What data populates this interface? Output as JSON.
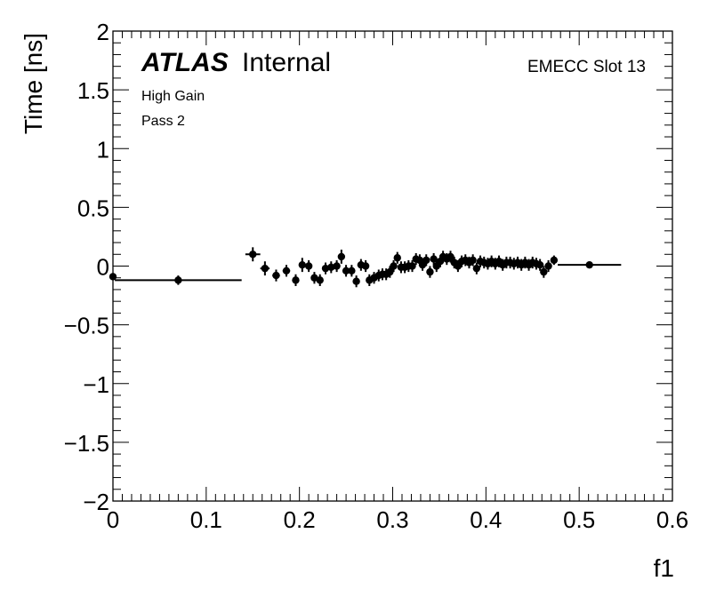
{
  "chart_data": {
    "type": "scatter",
    "title": "",
    "xlabel": "f1",
    "ylabel": "Time [ns]",
    "xlim": [
      0,
      0.6
    ],
    "ylim": [
      -2,
      2
    ],
    "x_ticks": [
      "0",
      "0.1",
      "0.2",
      "0.3",
      "0.4",
      "0.5",
      "0.6"
    ],
    "y_ticks": [
      "−2",
      "−1.5",
      "−1",
      "−0.5",
      "0",
      "0.5",
      "1",
      "1.5",
      "2"
    ],
    "x_tick_values": [
      0,
      0.1,
      0.2,
      0.3,
      0.4,
      0.5,
      0.6
    ],
    "y_tick_values": [
      -2,
      -1.5,
      -1,
      -0.5,
      0,
      0.5,
      1,
      1.5,
      2
    ],
    "annotations": {
      "atlas": "ATLAS",
      "internal": "Internal",
      "gain": "High Gain",
      "pass": "Pass 2",
      "slot": "EMECC Slot 13"
    },
    "grid": false,
    "series": [
      {
        "marker": "circle",
        "color": "#000000",
        "points": [
          {
            "x": 0.0,
            "y": -0.09,
            "xerr": 0.001,
            "yerr": 0.03
          },
          {
            "x": 0.07,
            "y": -0.12,
            "xerr": 0.068,
            "yerr": 0.04
          },
          {
            "x": 0.15,
            "y": 0.1,
            "xerr": 0.008,
            "yerr": 0.06
          },
          {
            "x": 0.163,
            "y": -0.02,
            "xerr": 0.005,
            "yerr": 0.06
          },
          {
            "x": 0.175,
            "y": -0.08,
            "xerr": 0.004,
            "yerr": 0.05
          },
          {
            "x": 0.186,
            "y": -0.04,
            "xerr": 0.004,
            "yerr": 0.05
          },
          {
            "x": 0.196,
            "y": -0.12,
            "xerr": 0.003,
            "yerr": 0.05
          },
          {
            "x": 0.203,
            "y": 0.01,
            "xerr": 0.003,
            "yerr": 0.06
          },
          {
            "x": 0.21,
            "y": 0.0,
            "xerr": 0.003,
            "yerr": 0.05
          },
          {
            "x": 0.216,
            "y": -0.1,
            "xerr": 0.003,
            "yerr": 0.05
          },
          {
            "x": 0.222,
            "y": -0.12,
            "xerr": 0.003,
            "yerr": 0.05
          },
          {
            "x": 0.228,
            "y": -0.02,
            "xerr": 0.003,
            "yerr": 0.05
          },
          {
            "x": 0.234,
            "y": -0.01,
            "xerr": 0.003,
            "yerr": 0.05
          },
          {
            "x": 0.24,
            "y": 0.0,
            "xerr": 0.003,
            "yerr": 0.05
          },
          {
            "x": 0.245,
            "y": 0.08,
            "xerr": 0.003,
            "yerr": 0.06
          },
          {
            "x": 0.25,
            "y": -0.04,
            "xerr": 0.003,
            "yerr": 0.05
          },
          {
            "x": 0.256,
            "y": -0.04,
            "xerr": 0.003,
            "yerr": 0.05
          },
          {
            "x": 0.261,
            "y": -0.13,
            "xerr": 0.003,
            "yerr": 0.05
          },
          {
            "x": 0.266,
            "y": 0.01,
            "xerr": 0.003,
            "yerr": 0.05
          },
          {
            "x": 0.271,
            "y": 0.0,
            "xerr": 0.003,
            "yerr": 0.05
          },
          {
            "x": 0.275,
            "y": -0.12,
            "xerr": 0.002,
            "yerr": 0.05
          },
          {
            "x": 0.28,
            "y": -0.1,
            "xerr": 0.002,
            "yerr": 0.05
          },
          {
            "x": 0.285,
            "y": -0.08,
            "xerr": 0.002,
            "yerr": 0.05
          },
          {
            "x": 0.289,
            "y": -0.07,
            "xerr": 0.002,
            "yerr": 0.05
          },
          {
            "x": 0.293,
            "y": -0.07,
            "xerr": 0.002,
            "yerr": 0.05
          },
          {
            "x": 0.297,
            "y": -0.05,
            "xerr": 0.002,
            "yerr": 0.05
          },
          {
            "x": 0.301,
            "y": 0.0,
            "xerr": 0.002,
            "yerr": 0.05
          },
          {
            "x": 0.305,
            "y": 0.07,
            "xerr": 0.002,
            "yerr": 0.05
          },
          {
            "x": 0.309,
            "y": -0.01,
            "xerr": 0.002,
            "yerr": 0.05
          },
          {
            "x": 0.313,
            "y": -0.01,
            "xerr": 0.002,
            "yerr": 0.05
          },
          {
            "x": 0.317,
            "y": 0.0,
            "xerr": 0.002,
            "yerr": 0.05
          },
          {
            "x": 0.321,
            "y": 0.0,
            "xerr": 0.002,
            "yerr": 0.05
          },
          {
            "x": 0.325,
            "y": 0.06,
            "xerr": 0.002,
            "yerr": 0.05
          },
          {
            "x": 0.329,
            "y": 0.05,
            "xerr": 0.002,
            "yerr": 0.05
          },
          {
            "x": 0.332,
            "y": 0.01,
            "xerr": 0.002,
            "yerr": 0.05
          },
          {
            "x": 0.336,
            "y": 0.05,
            "xerr": 0.002,
            "yerr": 0.05
          },
          {
            "x": 0.34,
            "y": -0.05,
            "xerr": 0.002,
            "yerr": 0.05
          },
          {
            "x": 0.344,
            "y": 0.06,
            "xerr": 0.002,
            "yerr": 0.05
          },
          {
            "x": 0.347,
            "y": 0.0,
            "xerr": 0.002,
            "yerr": 0.05
          },
          {
            "x": 0.351,
            "y": 0.04,
            "xerr": 0.002,
            "yerr": 0.05
          },
          {
            "x": 0.354,
            "y": 0.08,
            "xerr": 0.002,
            "yerr": 0.05
          },
          {
            "x": 0.358,
            "y": 0.06,
            "xerr": 0.002,
            "yerr": 0.05
          },
          {
            "x": 0.362,
            "y": 0.08,
            "xerr": 0.002,
            "yerr": 0.05
          },
          {
            "x": 0.366,
            "y": 0.03,
            "xerr": 0.002,
            "yerr": 0.05
          },
          {
            "x": 0.37,
            "y": 0.0,
            "xerr": 0.002,
            "yerr": 0.05
          },
          {
            "x": 0.374,
            "y": 0.04,
            "xerr": 0.002,
            "yerr": 0.05
          },
          {
            "x": 0.378,
            "y": 0.05,
            "xerr": 0.002,
            "yerr": 0.05
          },
          {
            "x": 0.382,
            "y": 0.03,
            "xerr": 0.002,
            "yerr": 0.05
          },
          {
            "x": 0.386,
            "y": 0.05,
            "xerr": 0.002,
            "yerr": 0.05
          },
          {
            "x": 0.39,
            "y": -0.02,
            "xerr": 0.002,
            "yerr": 0.05
          },
          {
            "x": 0.394,
            "y": 0.04,
            "xerr": 0.002,
            "yerr": 0.05
          },
          {
            "x": 0.398,
            "y": 0.03,
            "xerr": 0.002,
            "yerr": 0.05
          },
          {
            "x": 0.402,
            "y": 0.02,
            "xerr": 0.002,
            "yerr": 0.05
          },
          {
            "x": 0.406,
            "y": 0.04,
            "xerr": 0.002,
            "yerr": 0.05
          },
          {
            "x": 0.41,
            "y": 0.02,
            "xerr": 0.002,
            "yerr": 0.05
          },
          {
            "x": 0.414,
            "y": 0.04,
            "xerr": 0.002,
            "yerr": 0.05
          },
          {
            "x": 0.418,
            "y": 0.01,
            "xerr": 0.002,
            "yerr": 0.05
          },
          {
            "x": 0.422,
            "y": 0.03,
            "xerr": 0.002,
            "yerr": 0.05
          },
          {
            "x": 0.426,
            "y": 0.03,
            "xerr": 0.002,
            "yerr": 0.05
          },
          {
            "x": 0.43,
            "y": 0.02,
            "xerr": 0.002,
            "yerr": 0.05
          },
          {
            "x": 0.434,
            "y": 0.03,
            "xerr": 0.002,
            "yerr": 0.05
          },
          {
            "x": 0.438,
            "y": 0.01,
            "xerr": 0.002,
            "yerr": 0.05
          },
          {
            "x": 0.442,
            "y": 0.03,
            "xerr": 0.002,
            "yerr": 0.05
          },
          {
            "x": 0.446,
            "y": 0.01,
            "xerr": 0.002,
            "yerr": 0.05
          },
          {
            "x": 0.45,
            "y": 0.03,
            "xerr": 0.002,
            "yerr": 0.05
          },
          {
            "x": 0.454,
            "y": 0.02,
            "xerr": 0.002,
            "yerr": 0.05
          },
          {
            "x": 0.458,
            "y": 0.01,
            "xerr": 0.002,
            "yerr": 0.05
          },
          {
            "x": 0.462,
            "y": -0.05,
            "xerr": 0.002,
            "yerr": 0.05
          },
          {
            "x": 0.467,
            "y": 0.0,
            "xerr": 0.002,
            "yerr": 0.05
          },
          {
            "x": 0.473,
            "y": 0.05,
            "xerr": 0.003,
            "yerr": 0.04
          },
          {
            "x": 0.511,
            "y": 0.01,
            "xerr": 0.034,
            "yerr": 0.02
          }
        ]
      }
    ]
  }
}
